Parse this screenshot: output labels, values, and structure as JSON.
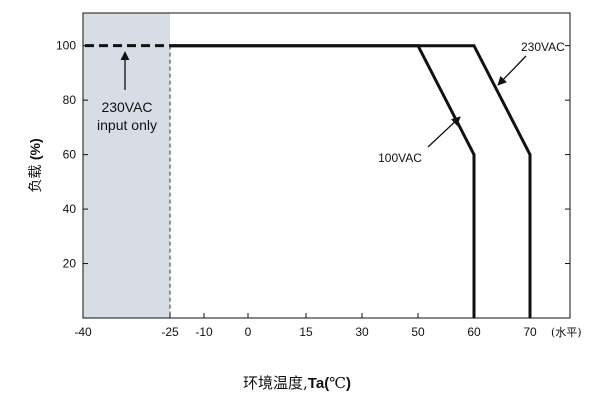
{
  "chart_data": {
    "type": "line",
    "title": "",
    "xlabel": {
      "prefix": "环境温度,",
      "bold": "Ta",
      "open_paren": "(",
      "unit": "℃",
      "close_paren": ")"
    },
    "ylabel": {
      "text": "负载",
      "bold": "(%)"
    },
    "x_end_annotation": "(水平)",
    "xlim": [
      -40,
      73
    ],
    "ylim": [
      0,
      112
    ],
    "x_ticks": [
      -40,
      -25,
      -10,
      0,
      15,
      30,
      50,
      60,
      70
    ],
    "y_ticks": [
      20,
      40,
      60,
      80,
      100
    ],
    "grid": false,
    "series": [
      {
        "name": "230VAC",
        "x": [
          -25,
          50,
          60,
          70,
          70
        ],
        "y": [
          100,
          100,
          100,
          60,
          0
        ]
      },
      {
        "name": "100VAC",
        "x": [
          -25,
          50,
          60,
          60
        ],
        "y": [
          100,
          100,
          60,
          0
        ]
      }
    ],
    "dashed_segment": {
      "x": [
        -40,
        -25
      ],
      "y": [
        100,
        100
      ]
    },
    "shaded_region": {
      "x_range": [
        -40,
        -25
      ],
      "label_lines": [
        "230VAC",
        "input only"
      ]
    },
    "colors": {
      "shade": "#d6dde5",
      "line": "#111111"
    }
  }
}
